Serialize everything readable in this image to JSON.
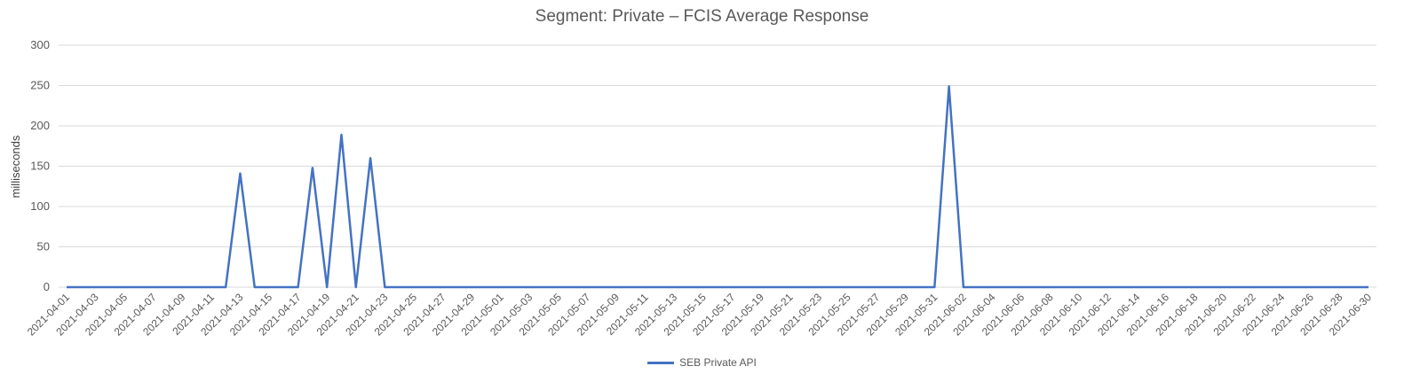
{
  "chart_data": {
    "type": "line",
    "title": "Segment: Private – FCIS Average Response",
    "xlabel": "",
    "ylabel": "milliseconds",
    "ylim": [
      0,
      300
    ],
    "yticks": [
      0,
      50,
      100,
      150,
      200,
      250,
      300
    ],
    "grid": true,
    "legend_position": "bottom",
    "x_start": "2021-04-01",
    "x_end": "2021-06-30",
    "x_tick_labels": [
      "2021-04-01",
      "2021-04-03",
      "2021-04-05",
      "2021-04-07",
      "2021-04-09",
      "2021-04-11",
      "2021-04-13",
      "2021-04-15",
      "2021-04-17",
      "2021-04-19",
      "2021-04-21",
      "2021-04-23",
      "2021-04-25",
      "2021-04-27",
      "2021-04-29",
      "2021-05-01",
      "2021-05-03",
      "2021-05-05",
      "2021-05-07",
      "2021-05-09",
      "2021-05-11",
      "2021-05-13",
      "2021-05-15",
      "2021-05-17",
      "2021-05-19",
      "2021-05-21",
      "2021-05-23",
      "2021-05-25",
      "2021-05-27",
      "2021-05-29",
      "2021-05-31",
      "2021-06-02",
      "2021-06-04",
      "2021-06-06",
      "2021-06-08",
      "2021-06-10",
      "2021-06-12",
      "2021-06-14",
      "2021-06-16",
      "2021-06-18",
      "2021-06-20",
      "2021-06-22",
      "2021-06-24",
      "2021-06-26",
      "2021-06-28",
      "2021-06-30"
    ],
    "series": [
      {
        "name": "SEB Private API",
        "color": "#4472c4",
        "points": [
          {
            "x": "2021-04-01",
            "y": 0
          },
          {
            "x": "2021-04-12",
            "y": 0
          },
          {
            "x": "2021-04-13",
            "y": 141
          },
          {
            "x": "2021-04-14",
            "y": 0
          },
          {
            "x": "2021-04-17",
            "y": 0
          },
          {
            "x": "2021-04-18",
            "y": 148
          },
          {
            "x": "2021-04-19",
            "y": 0
          },
          {
            "x": "2021-04-20",
            "y": 189
          },
          {
            "x": "2021-04-21",
            "y": 0
          },
          {
            "x": "2021-04-22",
            "y": 160
          },
          {
            "x": "2021-04-23",
            "y": 0
          },
          {
            "x": "2021-05-31",
            "y": 0
          },
          {
            "x": "2021-06-01",
            "y": 249
          },
          {
            "x": "2021-06-02",
            "y": 0
          },
          {
            "x": "2021-06-30",
            "y": 0
          }
        ]
      }
    ]
  }
}
